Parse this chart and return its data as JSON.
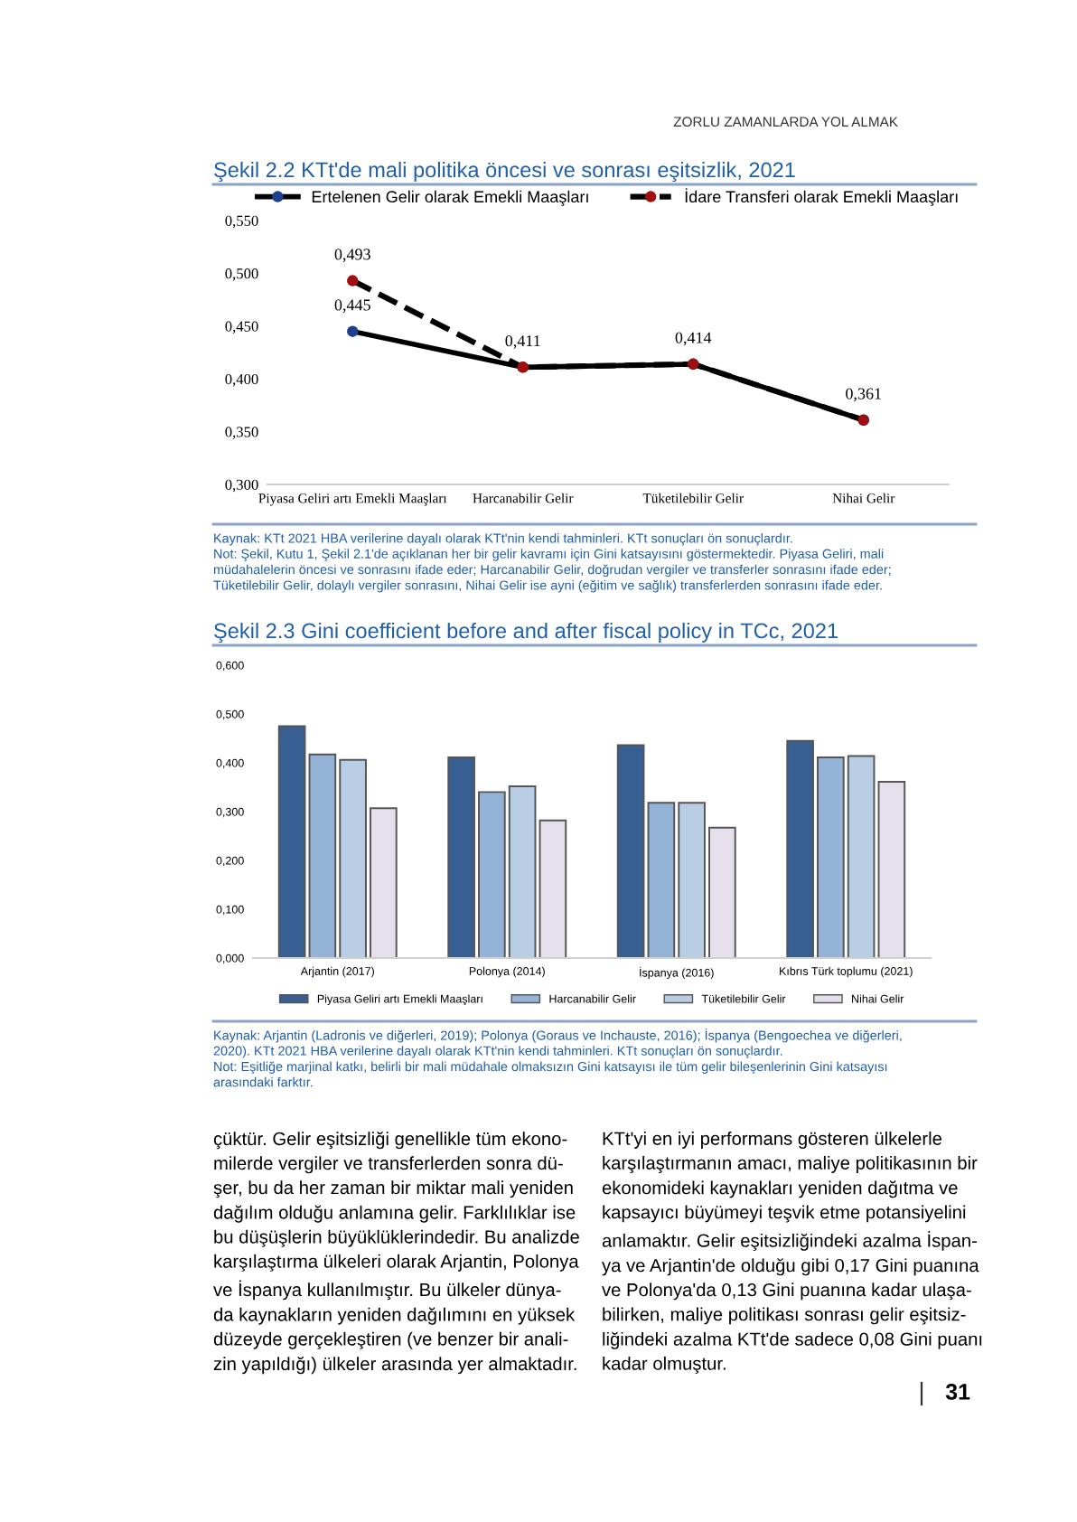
{
  "chart_data": [
    {
      "type": "line",
      "title": "Şekil 2.2 KTt'de mali politika öncesi ve sonrası eşitsizlik, 2021",
      "categories": [
        "Piyasa Geliri artı Emekli Maaşları",
        "Harcanabilir Gelir",
        "Tüketilebilir Gelir",
        "Nihai Gelir"
      ],
      "series": [
        {
          "name": "Ertelenen Gelir olarak Emekli Maaşları",
          "color": "#000000",
          "line_style": "solid",
          "values": [
            0.445,
            0.411,
            0.414,
            0.361
          ],
          "value_labels": [
            "0,445",
            "0,411",
            "0,414",
            "0,361"
          ]
        },
        {
          "name": "İdare Transferi olarak Emekli Maaşları",
          "color": "#000000",
          "line_style": "dashed",
          "values": [
            0.493,
            0.411,
            0.414,
            0.361
          ],
          "value_labels": [
            "0,493",
            null,
            null,
            null
          ]
        }
      ],
      "ylim": [
        0.3,
        0.55
      ],
      "yticks": [
        {
          "value": 0.3,
          "label": "0,300"
        },
        {
          "value": 0.35,
          "label": "0,350"
        },
        {
          "value": 0.4,
          "label": "0,400"
        },
        {
          "value": 0.45,
          "label": "0,450"
        },
        {
          "value": 0.5,
          "label": "0,500"
        },
        {
          "value": 0.55,
          "label": "0,550"
        }
      ],
      "marker": "circle",
      "grid": false,
      "legend": "top",
      "annotations": [
        "ZORLU ZAMANLARDA YOL ALMAK",
        "Kaynak: KTt 2021 HBA verilerine dayalı olarak KTt'nin kendi tahminleri. KTt sonuçları ön sonuçlardır.\nNot: Şekil, Kutu 1, Şekil 2.1'de açıklanan her bir gelir kavramı için Gini katsayısını göstermektedir. Piyasa Geliri, mali\nmüdahalelerin öncesi ve sonrasını ifade eder; Harcanabilir Gelir, doğrudan vergiler ve transferler sonrasını ifade eder;\nTüketilebilir Gelir, dolaylı vergiler sonrasını, Nihai Gelir ise ayni (eğitim ve sağlık) transferlerden sonrasını ifade eder."
      ]
    },
    {
      "type": "bar",
      "title": "Şekil 2.3 Gini coefficient before and after fiscal policy in TCc, 2021",
      "categories": [
        "Arjantin (2017)",
        "Polonya (2014)",
        "İspanya (2016)",
        "Kıbrıs Türk toplumu (2021)"
      ],
      "series": [
        {
          "name": "Piyasa Geliri artı Emekli Maaşları",
          "color": "#375f91",
          "values": [
            0.475,
            0.411,
            0.436,
            0.445
          ]
        },
        {
          "name": "Harcanabilir Gelir",
          "color": "#95b3d7",
          "values": [
            0.417,
            0.34,
            0.318,
            0.411
          ]
        },
        {
          "name": "Tüketilebilir Gelir",
          "color": "#b9cde5",
          "values": [
            0.406,
            0.352,
            0.318,
            0.414
          ]
        },
        {
          "name": "Nihai Gelir",
          "color": "#e6e0ec",
          "values": [
            0.307,
            0.282,
            0.267,
            0.361
          ]
        }
      ],
      "ylim": [
        0,
        0.6
      ],
      "yticks": [
        {
          "value": 0,
          "label": "0,000"
        },
        {
          "value": 0.1,
          "label": "0,100"
        },
        {
          "value": 0.2,
          "label": "0,200"
        },
        {
          "value": 0.3,
          "label": "0,300"
        },
        {
          "value": 0.4,
          "label": "0,400"
        },
        {
          "value": 0.5,
          "label": "0,500"
        },
        {
          "value": 0.6,
          "label": "0,600"
        }
      ],
      "grid": false,
      "legend": "bottom",
      "annotations": [
        "Kaynak: Arjantin (Ladronis ve diğerleri, 2019); Polonya (Goraus ve Inchauste, 2016); İspanya (Bengoechea ve diğerleri,\n2020). KTt 2021 HBA verilerine dayalı olarak KTt'nin kendi tahminleri. KTt sonuçları ön sonuçlardır.\nNot: Eşitliğe marjinal katkı, belirli bir mali müdahale olmaksızın Gini katsayısı ile tüm gelir bileşenlerinin Gini katsayısı\narasındaki farktır.",
        "çüktür. Gelir eşitsizliği genellikle tüm ekono-\nmilerde vergiler ve transferlerden sonra dü-\nşer, bu da her zaman bir miktar mali yeniden\ndağılım olduğu anlamına gelir. Farklılıklar ise\nbu düşüşlerin büyüklüklerindedir. Bu analizde\nkarşılaştırma ülkeleri olarak Arjantin, Polonya\nve İspanya kullanılmıştır. Bu ülkeler dünya-\nda kaynakların yeniden dağılımını en yüksek\ndüzeyde gerçekleştiren (ve benzer bir anali-\nzin yapıldığı) ülkeler arasında yer almaktadır.",
        "KTt'yi en iyi performans gösteren ülkelerle\nkarşılaştırmanın amacı, maliye politikasının bir\nekonomideki kaynakları yeniden dağıtma ve\nkapsayıcı büyümeyi teşvik etme potansiyelini\nanlamaktır. Gelir eşitsizliğindeki azalma İspan-\nya ve Arjantin'de olduğu gibi 0,17 Gini puanına\nve Polonya'da 0,13 Gini puanına kadar ulaşa-\nbilirken, maliye politikası sonrası gelir eşitsiz-\nliğindeki azalma KTt'de sadece 0,08 Gini puanı\nkadar olmuştur.",
        "31"
      ]
    }
  ]
}
